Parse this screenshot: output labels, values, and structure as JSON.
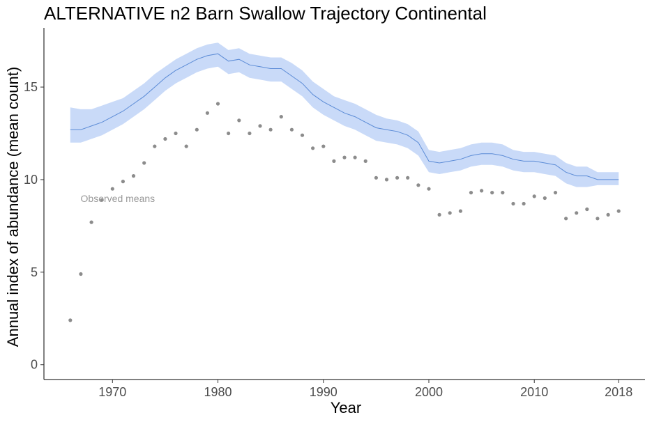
{
  "chart_data": {
    "type": "line",
    "title": "ALTERNATIVE n2 Barn Swallow Trajectory Continental",
    "xlabel": "Year",
    "ylabel": "Annual index of abundance (mean count)",
    "xlim": [
      1963.5,
      2020.5
    ],
    "ylim": [
      -0.8,
      18.2
    ],
    "x_ticks": [
      1970,
      1980,
      1990,
      2000,
      2010,
      2018
    ],
    "x_tick_labels": [
      "1970",
      "1980",
      "1990",
      "2000",
      "2010",
      "2018"
    ],
    "y_ticks": [
      0,
      5,
      10,
      15
    ],
    "y_tick_labels": [
      "0",
      "5",
      "10",
      "15"
    ],
    "grid": false,
    "annotation": {
      "text": "Observed means",
      "x": 1970.5,
      "y": 8.8
    },
    "colors": {
      "line": "#5b8bd6",
      "ribbon": "#c9daf8",
      "points": "#8c8c8c",
      "annotation": "#999999"
    },
    "series": [
      {
        "kind": "index-line-with-ci",
        "x": [
          1966,
          1967,
          1968,
          1969,
          1970,
          1971,
          1972,
          1973,
          1974,
          1975,
          1976,
          1977,
          1978,
          1979,
          1980,
          1981,
          1982,
          1983,
          1984,
          1985,
          1986,
          1987,
          1988,
          1989,
          1990,
          1991,
          1992,
          1993,
          1994,
          1995,
          1996,
          1997,
          1998,
          1999,
          2000,
          2001,
          2002,
          2003,
          2004,
          2005,
          2006,
          2007,
          2008,
          2009,
          2010,
          2011,
          2012,
          2013,
          2014,
          2015,
          2016,
          2017,
          2018
        ],
        "values": [
          12.7,
          12.7,
          12.9,
          13.1,
          13.4,
          13.7,
          14.1,
          14.5,
          15.0,
          15.5,
          15.9,
          16.2,
          16.5,
          16.7,
          16.8,
          16.4,
          16.5,
          16.2,
          16.1,
          16.0,
          16.0,
          15.6,
          15.2,
          14.6,
          14.2,
          13.9,
          13.6,
          13.4,
          13.1,
          12.8,
          12.7,
          12.6,
          12.4,
          12.0,
          11.0,
          10.9,
          11.0,
          11.1,
          11.3,
          11.4,
          11.4,
          11.3,
          11.1,
          11.0,
          11.0,
          10.9,
          10.8,
          10.4,
          10.2,
          10.2,
          10.0,
          10.0,
          10.0
        ],
        "lower": [
          12.0,
          12.0,
          12.2,
          12.4,
          12.7,
          13.0,
          13.4,
          13.8,
          14.3,
          14.8,
          15.2,
          15.5,
          15.8,
          16.0,
          16.1,
          15.7,
          15.8,
          15.5,
          15.4,
          15.3,
          15.3,
          14.9,
          14.5,
          13.9,
          13.5,
          13.2,
          12.9,
          12.7,
          12.4,
          12.1,
          12.0,
          11.9,
          11.7,
          11.3,
          10.4,
          10.3,
          10.4,
          10.5,
          10.7,
          10.8,
          10.8,
          10.7,
          10.5,
          10.4,
          10.4,
          10.3,
          10.2,
          9.8,
          9.6,
          9.6,
          9.7,
          9.7,
          9.7
        ],
        "upper": [
          13.9,
          13.8,
          13.8,
          14.0,
          14.2,
          14.4,
          14.8,
          15.2,
          15.7,
          16.1,
          16.5,
          16.8,
          17.1,
          17.3,
          17.4,
          17.0,
          17.1,
          16.8,
          16.7,
          16.6,
          16.6,
          16.3,
          15.9,
          15.3,
          14.9,
          14.5,
          14.3,
          14.1,
          13.8,
          13.5,
          13.3,
          13.2,
          13.0,
          12.6,
          11.6,
          11.5,
          11.6,
          11.7,
          11.9,
          12.0,
          12.0,
          11.9,
          11.6,
          11.5,
          11.5,
          11.4,
          11.3,
          10.9,
          10.7,
          10.7,
          10.4,
          10.4,
          10.4
        ]
      },
      {
        "kind": "observed-means",
        "x": [
          1966,
          1967,
          1968,
          1969,
          1970,
          1971,
          1972,
          1973,
          1974,
          1975,
          1976,
          1977,
          1978,
          1979,
          1980,
          1981,
          1982,
          1983,
          1984,
          1985,
          1986,
          1987,
          1988,
          1989,
          1990,
          1991,
          1992,
          1993,
          1994,
          1995,
          1996,
          1997,
          1998,
          1999,
          2000,
          2001,
          2002,
          2003,
          2004,
          2005,
          2006,
          2007,
          2008,
          2009,
          2010,
          2011,
          2012,
          2013,
          2014,
          2015,
          2016,
          2017,
          2018
        ],
        "values": [
          2.4,
          4.9,
          7.7,
          8.9,
          9.5,
          9.9,
          10.2,
          10.9,
          11.8,
          12.2,
          12.5,
          11.8,
          12.7,
          13.6,
          14.1,
          12.5,
          13.2,
          12.5,
          12.9,
          12.7,
          13.4,
          12.7,
          12.4,
          11.7,
          11.8,
          11.0,
          11.2,
          11.2,
          11.0,
          10.1,
          10.0,
          10.1,
          10.1,
          9.7,
          9.5,
          8.1,
          8.2,
          8.3,
          9.3,
          9.4,
          9.3,
          9.3,
          8.7,
          8.7,
          9.1,
          9.0,
          9.3,
          7.9,
          8.2,
          8.4,
          7.9,
          8.1,
          8.3
        ]
      }
    ]
  }
}
